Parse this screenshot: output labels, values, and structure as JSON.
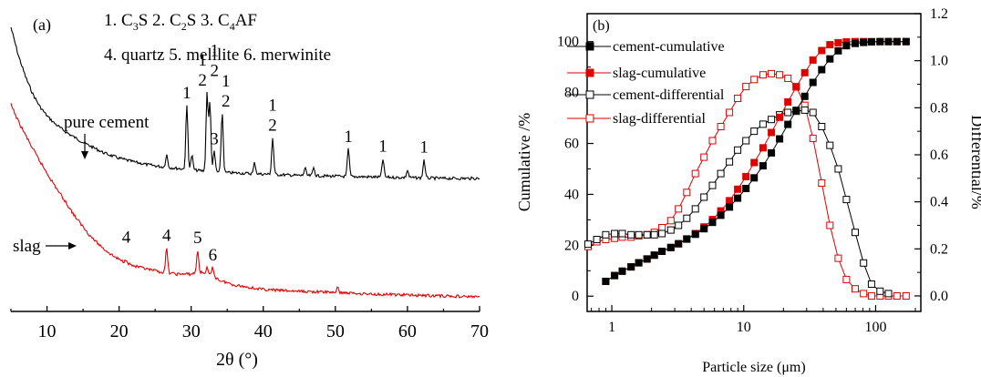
{
  "chart_data": [
    {
      "type": "line",
      "panel_label": "(a)",
      "xlabel": "2θ (°)",
      "xlim": [
        5,
        70
      ],
      "x_ticks": [
        10,
        20,
        30,
        40,
        50,
        60,
        70
      ],
      "x_tick_labels": [
        "10",
        "20",
        "30",
        "40",
        "50",
        "60",
        "70"
      ],
      "y_axis_shown": false,
      "legend_text": {
        "line1": {
          "p1": "1. C",
          "s1": "3",
          "p2": "S  2. C",
          "s2": "2",
          "p3": "S  3. C",
          "s3": "4",
          "p4": "AF"
        },
        "line2": "4. quartz 5. melilite 6. merwinite"
      },
      "series": [
        {
          "name": "pure cement",
          "color": "#000000",
          "background": {
            "x": [
              5,
              6,
              7,
              8,
              9,
              10,
              11,
              12,
              13,
              14,
              15,
              16,
              18,
              20,
              22,
              24,
              26,
              28,
              30,
              32,
              35,
              40,
              45,
              50,
              55,
              60,
              65,
              70
            ],
            "y": [
              0,
              38,
              68,
              92,
              110,
              123,
              133,
              141,
              148,
              154,
              160,
              165,
              175,
              182,
              187,
              191,
              194,
              196,
              198,
              200,
              202,
              204,
              206,
              207,
              208,
              209,
              210,
              210
            ]
          },
          "peaks": [
            {
              "x": 26.6,
              "h": 14
            },
            {
              "x": 29.4,
              "h": 70,
              "label": "1"
            },
            {
              "x": 30.1,
              "h": 16
            },
            {
              "x": 32.2,
              "h": 86,
              "label": "1\n2"
            },
            {
              "x": 32.6,
              "h": 75,
              "label": "1\n2"
            },
            {
              "x": 34.3,
              "h": 66,
              "label": "1\n2"
            },
            {
              "x": 33.2,
              "h": 22,
              "label": "3"
            },
            {
              "x": 38.8,
              "h": 12
            },
            {
              "x": 41.3,
              "h": 40,
              "label": "1\n2"
            },
            {
              "x": 45.8,
              "h": 8
            },
            {
              "x": 47.0,
              "h": 9
            },
            {
              "x": 51.8,
              "h": 30,
              "label": "1"
            },
            {
              "x": 56.6,
              "h": 20,
              "label": "1"
            },
            {
              "x": 60.0,
              "h": 8
            },
            {
              "x": 62.3,
              "h": 20,
              "label": "1"
            }
          ],
          "annotation": "pure cement"
        },
        {
          "name": "slag",
          "color": "#e00000",
          "background": {
            "x": [
              5,
              6,
              7,
              8,
              9,
              10,
              11,
              12,
              13,
              14,
              15,
              16,
              17,
              18,
              19,
              20,
              22,
              24,
              26,
              28,
              30,
              31,
              32,
              33,
              34,
              36,
              40,
              45,
              50,
              55,
              60,
              65,
              70
            ],
            "y": [
              0,
              18,
              33,
              48,
              62,
              75,
              88,
              100,
              112,
              124,
              134,
              144,
              152,
              159,
              165,
              170,
              177,
              181,
              184,
              186,
              186,
              184,
              185,
              188,
              193,
              198,
              203,
              205,
              206,
              208,
              209,
              210,
              211
            ]
          },
          "peaks": [
            {
              "x": 21.0,
              "h": 4,
              "label": "4"
            },
            {
              "x": 26.6,
              "h": 27,
              "label": "4"
            },
            {
              "x": 30.9,
              "h": 24,
              "label": "5"
            },
            {
              "x": 32.2,
              "h": 6
            },
            {
              "x": 33.0,
              "h": 9,
              "label": "6"
            },
            {
              "x": 50.3,
              "h": 5
            }
          ],
          "annotation": "slag"
        }
      ]
    },
    {
      "type": "line",
      "panel_label": "(b)",
      "xlabel": "Particle size (μm)",
      "x_scale": "log",
      "xlim": [
        0.65,
        220
      ],
      "x_ticks": [
        1,
        10,
        100
      ],
      "x_tick_labels": [
        "1",
        "10",
        "100"
      ],
      "y_left": {
        "label": "Cumulative /%",
        "lim": [
          -6,
          111
        ],
        "ticks": [
          0,
          20,
          40,
          60,
          80,
          100
        ]
      },
      "y_right": {
        "label": "Differential/%",
        "lim": [
          -0.066,
          1.2
        ],
        "ticks": [
          0.0,
          0.2,
          0.4,
          0.6,
          0.8,
          1.0,
          1.2
        ],
        "tick_labels": [
          "0.0",
          "0.2",
          "0.4",
          "0.6",
          "0.8",
          "1.0",
          "1.2"
        ]
      },
      "legend_position": "top-left",
      "series": [
        {
          "name": "cement-cumulative",
          "axis": "left",
          "color": "#000000",
          "marker": "filled-square",
          "x": [
            0.9,
            1.05,
            1.2,
            1.4,
            1.6,
            1.85,
            2.1,
            2.4,
            2.8,
            3.2,
            3.7,
            4.3,
            5.0,
            5.8,
            6.7,
            7.8,
            9.0,
            10.4,
            12.0,
            14.0,
            16.2,
            18.7,
            21.6,
            25,
            29,
            33.5,
            39,
            45,
            52,
            60,
            70,
            81,
            93,
            108,
            125,
            145,
            170
          ],
          "y": [
            5.8,
            8.1,
            9.8,
            11.5,
            13.1,
            14.6,
            16.1,
            17.6,
            19.1,
            20.6,
            22.4,
            24.3,
            26.5,
            29.0,
            31.8,
            35.0,
            38.5,
            42.3,
            46.5,
            51.2,
            56.3,
            61.8,
            67.5,
            73.0,
            78.5,
            84.0,
            89.0,
            93.2,
            96.4,
            98.4,
            99.3,
            99.7,
            99.9,
            100,
            100,
            100,
            100
          ]
        },
        {
          "name": "slag-cumulative",
          "axis": "left",
          "color": "#e00000",
          "marker": "filled-square",
          "x": [
            0.9,
            1.05,
            1.2,
            1.4,
            1.6,
            1.85,
            2.1,
            2.4,
            2.8,
            3.2,
            3.7,
            4.3,
            5.0,
            5.8,
            6.7,
            7.8,
            9.0,
            10.4,
            12.0,
            14.0,
            16.2,
            18.7,
            21.6,
            25,
            29,
            33.5,
            39,
            45,
            52,
            60,
            70,
            81,
            93,
            108,
            125,
            145,
            170
          ],
          "y": [
            5.8,
            8.1,
            9.8,
            11.5,
            13.1,
            14.6,
            16.1,
            17.6,
            19.1,
            20.6,
            22.5,
            24.6,
            27.2,
            30.1,
            33.5,
            37.5,
            42.0,
            47.0,
            52.5,
            58.3,
            64.3,
            70.3,
            76.3,
            82.2,
            87.8,
            92.8,
            96.5,
            98.8,
            99.6,
            99.9,
            100,
            100,
            100,
            100,
            100,
            100,
            100
          ]
        },
        {
          "name": "cement-differential",
          "axis": "right",
          "color": "#000000",
          "marker": "open-square",
          "x": [
            0.66,
            0.77,
            0.9,
            1.05,
            1.2,
            1.4,
            1.6,
            1.85,
            2.1,
            2.4,
            2.8,
            3.2,
            3.7,
            4.3,
            5.0,
            5.8,
            6.7,
            7.8,
            9.0,
            10.4,
            12.0,
            14.0,
            16.2,
            18.7,
            21.6,
            25,
            29,
            33.5,
            39,
            45,
            52,
            60,
            70,
            81,
            93,
            108,
            125
          ],
          "y": [
            0.22,
            0.24,
            0.26,
            0.265,
            0.265,
            0.26,
            0.26,
            0.26,
            0.26,
            0.265,
            0.28,
            0.3,
            0.33,
            0.37,
            0.42,
            0.47,
            0.52,
            0.57,
            0.62,
            0.66,
            0.7,
            0.73,
            0.75,
            0.77,
            0.78,
            0.785,
            0.79,
            0.78,
            0.72,
            0.64,
            0.54,
            0.41,
            0.27,
            0.14,
            0.05,
            0.02,
            0.01
          ]
        },
        {
          "name": "slag-differential",
          "axis": "right",
          "color": "#e00000",
          "marker": "open-square",
          "x": [
            0.66,
            0.77,
            0.9,
            1.05,
            1.2,
            1.4,
            1.6,
            1.85,
            2.1,
            2.4,
            2.8,
            3.2,
            3.7,
            4.3,
            5.0,
            5.8,
            6.7,
            7.8,
            9.0,
            10.4,
            12.0,
            14.0,
            16.2,
            18.7,
            21.6,
            25,
            29,
            33.5,
            39,
            45,
            52,
            60,
            70,
            81,
            93,
            108,
            125,
            145,
            170
          ],
          "y": [
            0.21,
            0.23,
            0.24,
            0.245,
            0.25,
            0.25,
            0.255,
            0.26,
            0.27,
            0.29,
            0.32,
            0.37,
            0.44,
            0.52,
            0.59,
            0.66,
            0.72,
            0.78,
            0.84,
            0.89,
            0.92,
            0.94,
            0.945,
            0.94,
            0.925,
            0.89,
            0.81,
            0.67,
            0.48,
            0.3,
            0.16,
            0.07,
            0.03,
            0.01,
            0,
            0,
            0,
            0,
            0
          ]
        }
      ]
    }
  ]
}
